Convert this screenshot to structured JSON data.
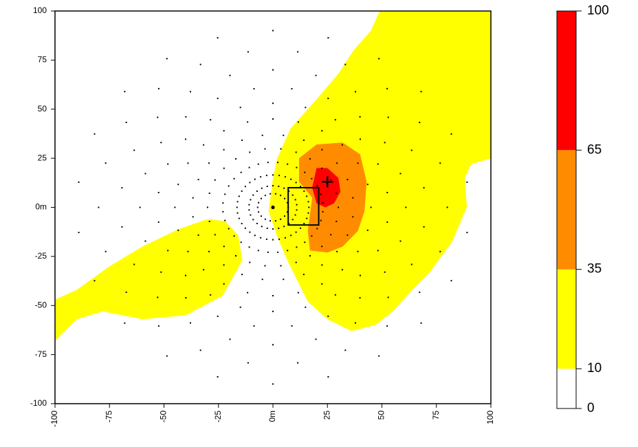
{
  "chart_data": {
    "type": "heatmap",
    "title": "",
    "xlabel": "",
    "ylabel": "",
    "xlim": [
      -100,
      100
    ],
    "ylim": [
      -100,
      100
    ],
    "x_ticks": [
      "-100",
      "-75",
      "-50",
      "-25",
      "0m",
      "25",
      "50",
      "75",
      "100"
    ],
    "y_ticks": [
      "100",
      "75",
      "50",
      "25",
      "0m",
      "-25",
      "-50",
      "-75",
      "-100"
    ],
    "grid": false,
    "legend_position": "right",
    "color_classes": [
      {
        "from": 0,
        "to": 10,
        "color": "#ffffff"
      },
      {
        "from": 10,
        "to": 35,
        "color": "#ffff00"
      },
      {
        "from": 35,
        "to": 65,
        "color": "#ff8c00"
      },
      {
        "from": 65,
        "to": 100,
        "color": "#ff0000"
      }
    ],
    "legend_ticks": [
      "0",
      "10",
      "35",
      "65",
      "100"
    ],
    "regions": [
      {
        "level": "10-35",
        "polygon": [
          [
            2,
            25
          ],
          [
            8,
            40
          ],
          [
            20,
            55
          ],
          [
            30,
            68
          ],
          [
            37,
            80
          ],
          [
            45,
            90
          ],
          [
            49,
            100
          ],
          [
            100,
            100
          ],
          [
            100,
            25
          ],
          [
            91,
            22
          ],
          [
            88,
            15
          ],
          [
            89,
            0
          ],
          [
            82,
            -18
          ],
          [
            72,
            -33
          ],
          [
            64,
            -42
          ],
          [
            55,
            -53
          ],
          [
            47,
            -60
          ],
          [
            36,
            -63
          ],
          [
            25,
            -57
          ],
          [
            16,
            -48
          ],
          [
            7,
            -28
          ],
          [
            2,
            -15
          ],
          [
            -2,
            -2
          ],
          [
            0,
            15
          ]
        ]
      },
      {
        "level": "10-35",
        "polygon": [
          [
            -100,
            -47
          ],
          [
            -90,
            -42
          ],
          [
            -75,
            -30
          ],
          [
            -60,
            -20
          ],
          [
            -43,
            -11
          ],
          [
            -30,
            -6
          ],
          [
            -22,
            -7
          ],
          [
            -16,
            -14
          ],
          [
            -14,
            -27
          ],
          [
            -23,
            -45
          ],
          [
            -40,
            -55
          ],
          [
            -60,
            -57
          ],
          [
            -78,
            -53
          ],
          [
            -90,
            -57
          ],
          [
            -100,
            -68
          ]
        ]
      },
      {
        "level": "35-65",
        "polygon": [
          [
            12,
            25
          ],
          [
            20,
            32
          ],
          [
            32,
            33
          ],
          [
            40,
            27
          ],
          [
            43,
            13
          ],
          [
            42,
            -2
          ],
          [
            39,
            -12
          ],
          [
            32,
            -20
          ],
          [
            25,
            -23
          ],
          [
            17,
            -22
          ],
          [
            16,
            -12
          ],
          [
            18,
            5
          ],
          [
            12,
            13
          ]
        ]
      },
      {
        "level": "65-100",
        "polygon": [
          [
            20,
            20
          ],
          [
            25,
            20
          ],
          [
            30,
            15
          ],
          [
            31,
            8
          ],
          [
            28,
            2
          ],
          [
            24,
            0
          ],
          [
            20,
            2
          ],
          [
            18,
            10
          ]
        ]
      }
    ],
    "point_rings": [
      {
        "radius": 7,
        "count": 18
      },
      {
        "radius": 11,
        "count": 26
      },
      {
        "radius": 16.5,
        "count": 36
      },
      {
        "radius": 23,
        "count": 32
      },
      {
        "radius": 30,
        "count": 26
      },
      {
        "radius": 37,
        "count": 24
      },
      {
        "radius": 45,
        "count": 24
      },
      {
        "radius": 53,
        "count": 22
      },
      {
        "radius": 61,
        "count": 22
      },
      {
        "radius": 70,
        "count": 22
      },
      {
        "radius": 80,
        "count": 22
      },
      {
        "radius": 90,
        "count": 22
      }
    ],
    "annotations": {
      "center_point": {
        "x": 0,
        "y": 0
      },
      "rectangle": {
        "x_min": 7,
        "x_max": 21,
        "y_min": -9,
        "y_max": 10
      },
      "cross_marker": {
        "x": 25,
        "y": 13
      }
    }
  }
}
